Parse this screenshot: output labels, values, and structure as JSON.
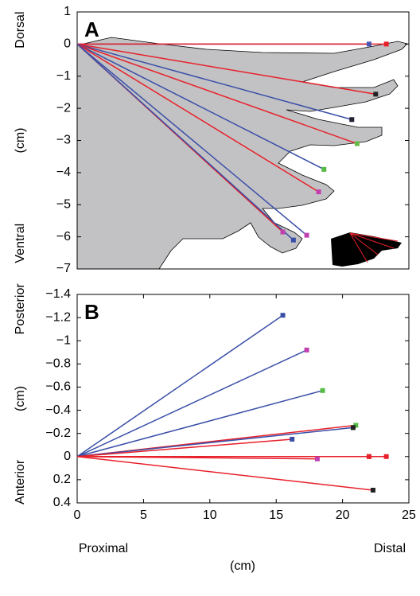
{
  "chart_data": [
    {
      "type": "spoke",
      "panel_label": "A",
      "xlim": [
        0,
        25
      ],
      "ylim": [
        -7,
        1
      ],
      "yticks": [
        1,
        0,
        {
          "value": -1,
          "label": "−1"
        },
        {
          "value": -2,
          "label": "−2"
        },
        {
          "value": -3,
          "label": "−3"
        },
        {
          "value": -4,
          "label": "−4"
        },
        {
          "value": -5,
          "label": "−5"
        },
        {
          "value": -6,
          "label": "−6"
        },
        {
          "value": -7,
          "label": "−7"
        }
      ],
      "y_labels": [
        "Dorsal",
        "(cm)",
        "Ventral"
      ],
      "lines": {
        "x": [
          22.0,
          23.3,
          22.5,
          20.7,
          21.1,
          18.6,
          18.2,
          17.3,
          15.5,
          16.3
        ],
        "y": [
          0,
          0,
          -1.56,
          -2.35,
          -3.1,
          -3.9,
          -4.6,
          -5.95,
          -5.85,
          -6.1
        ],
        "colors": [
          "#3a4fa8",
          "#e8202a",
          "#e8202a",
          "#3a4fa8",
          "#e8202a",
          "#3a4fa8",
          "#e8202a",
          "#3a4fa8",
          "#e8202a",
          "#3a4fa8"
        ],
        "marker_colors": [
          "#4a55b0",
          "#e8202a",
          "#222222",
          "#222233",
          "#66bb44",
          "#55bb44",
          "#c040b0",
          "#c040b0",
          "#c040b0",
          "#3a4fa8"
        ]
      }
    },
    {
      "type": "spoke",
      "panel_label": "B",
      "xlim": [
        0,
        25
      ],
      "xticks": [
        0,
        5,
        10,
        15,
        20,
        25
      ],
      "ylim": [
        -1.4,
        0.4
      ],
      "y_reversed": true,
      "yticks": [
        {
          "value": -1.4,
          "label": "−1.4"
        },
        {
          "value": -1.2,
          "label": "−1.2"
        },
        {
          "value": -1,
          "label": "−1"
        },
        {
          "value": -0.8,
          "label": "−0.8"
        },
        {
          "value": -0.6,
          "label": "−0.6"
        },
        {
          "value": -0.4,
          "label": "−0.4"
        },
        {
          "value": -0.2,
          "label": "−0.2"
        },
        0,
        0.2,
        0.4
      ],
      "y_labels": [
        "Posterior",
        "(cm)",
        "Anterior"
      ],
      "x_labels": [
        "Proximal",
        "(cm)",
        "Distal"
      ],
      "lines": {
        "x": [
          15.5,
          17.3,
          18.5,
          21.0,
          20.8,
          16.2,
          22.0,
          23.3,
          22.0,
          18.1,
          22.3
        ],
        "y": [
          -1.22,
          -0.92,
          -0.57,
          -0.27,
          -0.25,
          -0.15,
          0,
          0,
          0,
          0.02,
          0.29
        ],
        "colors": [
          "#3a4fa8",
          "#3a4fa8",
          "#3a4fa8",
          "#e8202a",
          "#3a4fa8",
          "#e8202a",
          "#3a4fa8",
          "#e8202a",
          "#e8202a",
          "#e8202a",
          "#e8202a"
        ],
        "marker_colors": [
          "#3a4fa8",
          "#c040b0",
          "#55bb44",
          "#55bb44",
          "#222222",
          "#3a4fa8",
          "#e8202a",
          "#e8202a",
          "#e8202a",
          "#c040b0",
          "#222222"
        ]
      }
    }
  ]
}
